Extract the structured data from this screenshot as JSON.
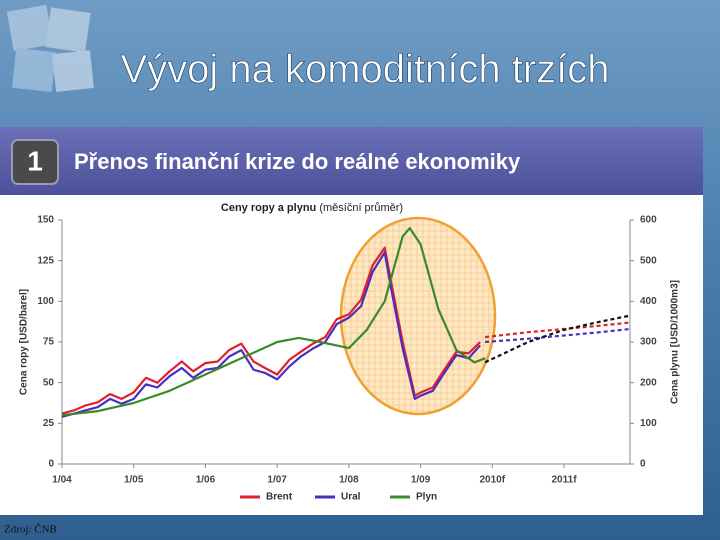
{
  "title": "Vývoj na komoditních trzích",
  "panel_number": "1",
  "panel_title": "Přenos finanční krize do reálné ekonomiky",
  "source": "Zdroj: ČNB",
  "chart_data": {
    "type": "line",
    "title": "Ceny ropy a plynu",
    "subtitle": "(měsíční průměr)",
    "y_label": "Cena ropy [USD/barel]",
    "y2_label": "Cena plynu [USD/1000m3]",
    "xlim": [
      2004,
      2011.92
    ],
    "xticks": [
      {
        "value": 2004,
        "label": "1/04"
      },
      {
        "value": 2005,
        "label": "1/05"
      },
      {
        "value": 2006,
        "label": "1/06"
      },
      {
        "value": 2007,
        "label": "1/07"
      },
      {
        "value": 2008,
        "label": "1/08"
      },
      {
        "value": 2009,
        "label": "1/09"
      },
      {
        "value": 2010,
        "label": "2010f"
      },
      {
        "value": 2011,
        "label": "2011f"
      }
    ],
    "ylim": [
      0,
      150
    ],
    "yticks": [
      0,
      25,
      50,
      75,
      100,
      125,
      150
    ],
    "y2lim": [
      0,
      600
    ],
    "y2ticks": [
      0,
      100,
      200,
      300,
      400,
      500,
      600
    ],
    "grid": false,
    "series": [
      {
        "name": "Brent",
        "color": "#e0202c",
        "x": [
          2004,
          2004.17,
          2004.33,
          2004.5,
          2004.67,
          2004.83,
          2005,
          2005.17,
          2005.33,
          2005.5,
          2005.67,
          2005.83,
          2006,
          2006.17,
          2006.33,
          2006.5,
          2006.67,
          2006.83,
          2007,
          2007.17,
          2007.33,
          2007.5,
          2007.67,
          2007.83,
          2008,
          2008.17,
          2008.33,
          2008.5,
          2008.58,
          2008.75,
          2008.92,
          2009,
          2009.17,
          2009.33,
          2009.5,
          2009.67,
          2009.83
        ],
        "values": [
          31,
          33,
          36,
          38,
          43,
          40,
          44,
          53,
          50,
          57,
          63,
          57,
          62,
          63,
          70,
          74,
          63,
          59,
          55,
          64,
          69,
          74,
          78,
          89,
          92,
          101,
          122,
          133,
          114,
          75,
          42,
          44,
          47,
          58,
          69,
          68,
          75
        ]
      },
      {
        "name": "Ural",
        "color": "#4a2fbf",
        "x": [
          2004,
          2004.17,
          2004.33,
          2004.5,
          2004.67,
          2004.83,
          2005,
          2005.17,
          2005.33,
          2005.5,
          2005.67,
          2005.83,
          2006,
          2006.17,
          2006.33,
          2006.5,
          2006.67,
          2006.83,
          2007,
          2007.17,
          2007.33,
          2007.5,
          2007.67,
          2007.83,
          2008,
          2008.17,
          2008.33,
          2008.5,
          2008.58,
          2008.75,
          2008.92,
          2009,
          2009.17,
          2009.33,
          2009.5,
          2009.67,
          2009.83
        ],
        "values": [
          29,
          31,
          33,
          35,
          40,
          37,
          40,
          49,
          47,
          54,
          59,
          53,
          58,
          59,
          66,
          70,
          58,
          56,
          52,
          60,
          66,
          71,
          75,
          86,
          90,
          97,
          118,
          130,
          110,
          71,
          40,
          42,
          45,
          56,
          67,
          65,
          73
        ]
      },
      {
        "name": "Plyn",
        "color": "#3a8a2a",
        "axis": "y2",
        "x": [
          2004,
          2004.5,
          2005,
          2005.5,
          2006,
          2006.5,
          2007,
          2007.3,
          2007.6,
          2008,
          2008.25,
          2008.5,
          2008.75,
          2008.85,
          2009,
          2009.25,
          2009.5,
          2009.75,
          2009.9
        ],
        "values": [
          120,
          130,
          150,
          180,
          220,
          260,
          300,
          310,
          300,
          285,
          330,
          400,
          560,
          580,
          540,
          380,
          280,
          250,
          260
        ]
      },
      {
        "color": "#e0202c",
        "dashed": true,
        "x": [
          2009.9,
          2010.5,
          2011,
          2011.5,
          2011.92
        ],
        "values": [
          78,
          81,
          83,
          85,
          87
        ]
      },
      {
        "color": "#4a2fbf",
        "dashed": true,
        "x": [
          2009.9,
          2010.5,
          2011,
          2011.5,
          2011.92
        ],
        "values": [
          75,
          77,
          79,
          81,
          83
        ]
      },
      {
        "color": "#111111",
        "dashed": true,
        "axis": "y2",
        "x": [
          2009.9,
          2010.5,
          2011,
          2011.5,
          2011.92
        ],
        "values": [
          250,
          300,
          330,
          350,
          365
        ]
      }
    ]
  }
}
